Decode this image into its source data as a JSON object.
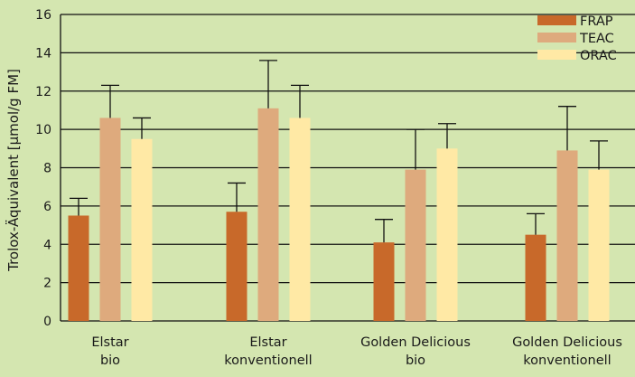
{
  "chart_data": {
    "type": "bar",
    "ylabel": "Trolox-Äquivalent [μmol/g FM]",
    "ylim": [
      0,
      16
    ],
    "yticks": [
      0,
      2,
      4,
      6,
      8,
      10,
      12,
      14,
      16
    ],
    "grid": true,
    "legend_position": "top-right",
    "categories": [
      [
        "Elstar",
        "bio"
      ],
      [
        "Elstar",
        "konventionell"
      ],
      [
        "Golden Delicious",
        "bio"
      ],
      [
        "Golden Delicious",
        "konventionell"
      ]
    ],
    "series": [
      {
        "name": "FRAP",
        "color": "#c8692a",
        "values": [
          5.5,
          5.7,
          4.1,
          4.5
        ],
        "error": [
          0.9,
          1.5,
          1.2,
          1.1
        ]
      },
      {
        "name": "TEAC",
        "color": "#deaa7d",
        "values": [
          10.6,
          11.1,
          7.9,
          8.9
        ],
        "error": [
          1.7,
          2.5,
          2.1,
          2.3
        ]
      },
      {
        "name": "ORAC",
        "color": "#ffe9a5",
        "values": [
          9.5,
          10.6,
          9.0,
          7.9
        ],
        "error": [
          1.1,
          1.7,
          1.3,
          1.5
        ]
      }
    ]
  }
}
